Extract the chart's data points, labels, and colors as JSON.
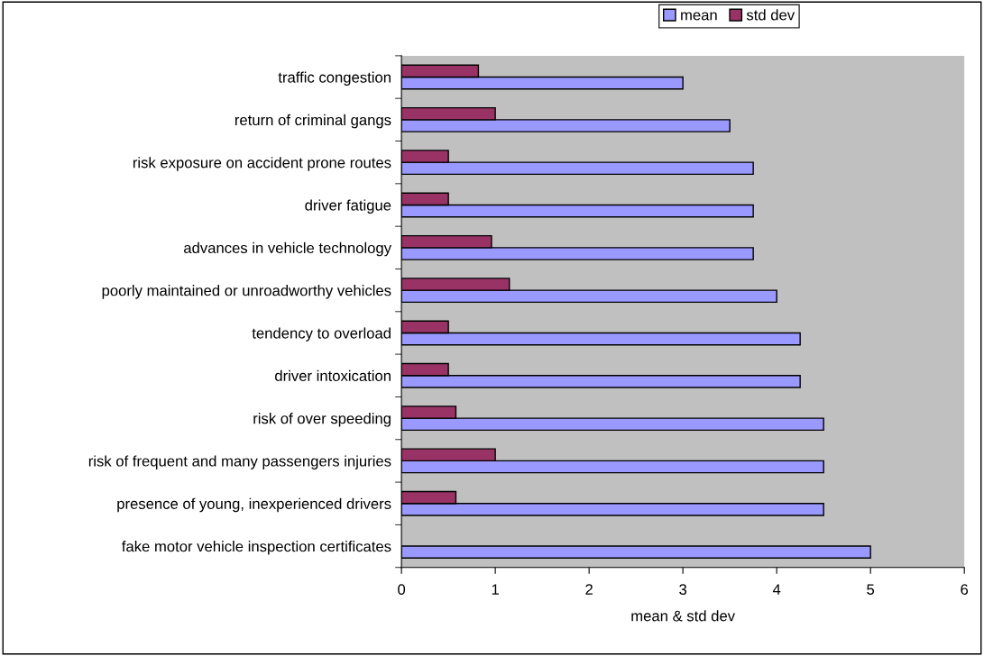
{
  "chart_data": {
    "type": "bar",
    "orientation": "horizontal",
    "xlabel": "mean & std dev",
    "categories": [
      "traffic congestion",
      "return of criminal gangs",
      "risk exposure on accident prone routes",
      "driver fatigue",
      "advances in vehicle technology",
      "poorly maintained or unroadworthy vehicles",
      "tendency to overload",
      "driver intoxication",
      "risk of over speeding",
      "risk of frequent and many passengers injuries",
      "presence of young, inexperienced drivers",
      "fake motor vehicle inspection certificates"
    ],
    "series": [
      {
        "name": "mean",
        "color": "#9999ff",
        "values": [
          3,
          3.5,
          3.75,
          3.75,
          3.75,
          4,
          4.25,
          4.25,
          4.5,
          4.5,
          4.5,
          5
        ]
      },
      {
        "name": "std dev",
        "color": "#993366",
        "values": [
          0.82,
          1.0,
          0.5,
          0.5,
          0.96,
          1.15,
          0.5,
          0.5,
          0.58,
          1.0,
          0.58,
          null
        ]
      }
    ],
    "xlim": [
      0,
      6
    ],
    "xticks": [
      0,
      1,
      2,
      3,
      4,
      5,
      6
    ],
    "grid": false,
    "legend": "top right"
  }
}
